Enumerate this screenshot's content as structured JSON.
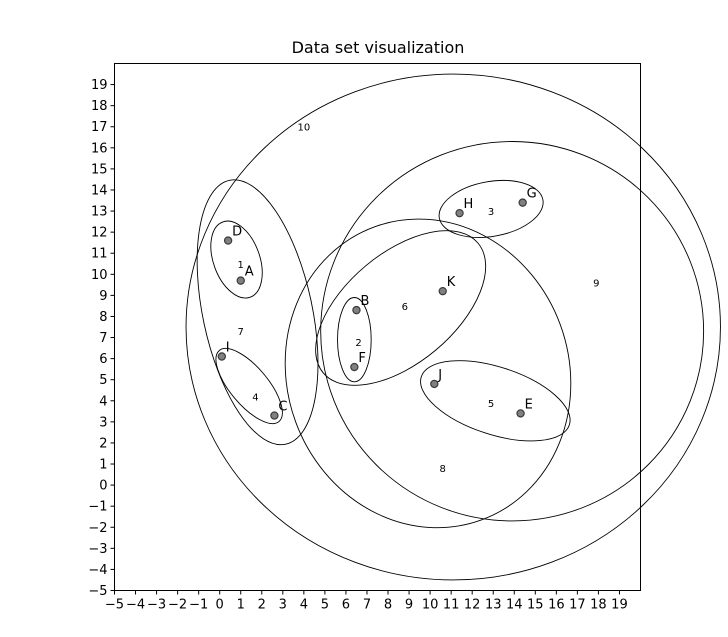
{
  "chart_data": {
    "type": "scatter",
    "title": "Data set visualization",
    "xlabel": "",
    "ylabel": "",
    "xlim": [
      -5,
      20
    ],
    "ylim": [
      -5,
      20
    ],
    "x_ticks": [
      -5,
      -4,
      -3,
      -2,
      -1,
      0,
      1,
      2,
      3,
      4,
      5,
      6,
      7,
      8,
      9,
      10,
      11,
      12,
      13,
      14,
      15,
      16,
      17,
      18,
      19
    ],
    "y_ticks": [
      -5,
      -4,
      -3,
      -2,
      -1,
      0,
      1,
      2,
      3,
      4,
      5,
      6,
      7,
      8,
      9,
      10,
      11,
      12,
      13,
      14,
      15,
      16,
      17,
      18,
      19
    ],
    "grid": false,
    "point_color": "#808080",
    "points": [
      {
        "label": "A",
        "x": 1.0,
        "y": 9.7
      },
      {
        "label": "B",
        "x": 6.5,
        "y": 8.3
      },
      {
        "label": "C",
        "x": 2.6,
        "y": 3.3
      },
      {
        "label": "D",
        "x": 0.4,
        "y": 11.6
      },
      {
        "label": "E",
        "x": 14.3,
        "y": 3.4
      },
      {
        "label": "F",
        "x": 6.4,
        "y": 5.6
      },
      {
        "label": "G",
        "x": 14.4,
        "y": 13.4
      },
      {
        "label": "H",
        "x": 11.4,
        "y": 12.9
      },
      {
        "label": "I",
        "x": 0.1,
        "y": 6.1
      },
      {
        "label": "J",
        "x": 10.2,
        "y": 4.8
      },
      {
        "label": "K",
        "x": 10.6,
        "y": 9.2
      }
    ],
    "ellipses": [
      {
        "label": "1",
        "cx": 0.8,
        "cy": 10.7,
        "rx": 1.1,
        "ry": 1.9,
        "angle": 20,
        "label_x": 1.0,
        "label_y": 10.5
      },
      {
        "label": "2",
        "cx": 6.4,
        "cy": 6.9,
        "rx": 0.8,
        "ry": 2.0,
        "angle": 0,
        "label_x": 6.6,
        "label_y": 6.8
      },
      {
        "label": "3",
        "cx": 12.9,
        "cy": 13.1,
        "rx": 2.5,
        "ry": 1.3,
        "angle": 10,
        "label_x": 12.9,
        "label_y": 13.0
      },
      {
        "label": "4",
        "cx": 1.4,
        "cy": 4.7,
        "rx": 0.9,
        "ry": 2.2,
        "angle": 40,
        "label_x": 1.7,
        "label_y": 4.2
      },
      {
        "label": "5",
        "cx": 13.1,
        "cy": 4.0,
        "rx": 3.7,
        "ry": 1.6,
        "angle": -18,
        "label_x": 12.9,
        "label_y": 3.9
      },
      {
        "label": "6",
        "cx": 8.6,
        "cy": 8.4,
        "rx": 4.8,
        "ry": 2.6,
        "angle": 40,
        "label_x": 8.8,
        "label_y": 8.5
      },
      {
        "label": "7",
        "cx": 1.8,
        "cy": 8.2,
        "rx": 2.6,
        "ry": 6.4,
        "angle": 12,
        "label_x": 1.0,
        "label_y": 7.3
      },
      {
        "label": "8",
        "cx": 9.9,
        "cy": 5.3,
        "rx": 6.7,
        "ry": 7.4,
        "angle": 20,
        "label_x": 10.6,
        "label_y": 0.8
      },
      {
        "label": "9",
        "cx": 13.9,
        "cy": 7.3,
        "rx": 9.1,
        "ry": 9.0,
        "angle": 0,
        "label_x": 17.9,
        "label_y": 9.6
      },
      {
        "label": "10",
        "cx": 11.1,
        "cy": 7.5,
        "rx": 12.7,
        "ry": 12.0,
        "angle": 0,
        "label_x": 4.0,
        "label_y": 17.0
      }
    ]
  }
}
